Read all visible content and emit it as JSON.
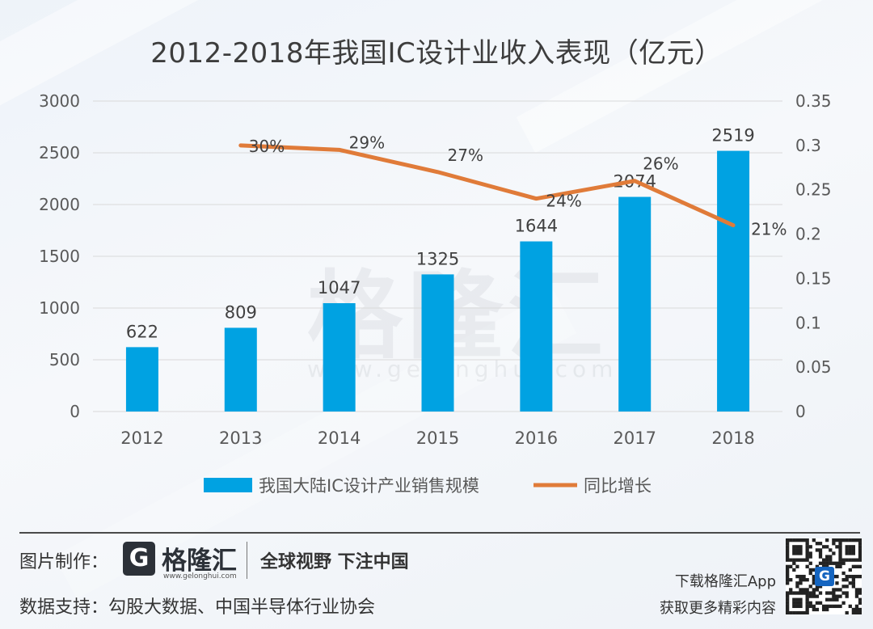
{
  "chart_data": {
    "type": "bar+line",
    "title": "2012-2018年我国IC设计业收入表现（亿元）",
    "categories": [
      "2012",
      "2013",
      "2014",
      "2015",
      "2016",
      "2017",
      "2018"
    ],
    "series": [
      {
        "name": "我国大陆IC设计产业销售规模",
        "type": "bar",
        "axis": "left",
        "color": "#00a2e2",
        "values": [
          622,
          809,
          1047,
          1325,
          1644,
          2074,
          2519
        ],
        "labels": [
          "622",
          "809",
          "1047",
          "1325",
          "1644",
          "2074",
          "2519"
        ]
      },
      {
        "name": "同比增长",
        "type": "line",
        "axis": "right",
        "color": "#e07b39",
        "values": [
          null,
          0.3,
          0.295,
          0.27,
          0.24,
          0.26,
          0.21
        ],
        "labels": [
          "",
          "30%",
          "29%",
          "27%",
          "24%",
          "26%",
          "21%"
        ]
      }
    ],
    "y_left": {
      "min": 0,
      "max": 3000,
      "ticks": [
        0,
        500,
        1000,
        1500,
        2000,
        2500,
        3000
      ]
    },
    "y_right": {
      "min": 0,
      "max": 0.35,
      "ticks": [
        "0",
        "0.05",
        "0.1",
        "0.15",
        "0.2",
        "0.25",
        "0.3",
        "0.35"
      ]
    },
    "grid": true,
    "legend_position": "bottom"
  },
  "watermark": {
    "cn": "格隆汇",
    "en": "www.gelonghui.com"
  },
  "footer": {
    "made_by_label": "图片制作：",
    "logo_letter": "G",
    "logo_name": "格隆汇",
    "logo_url": "www.gelonghui.com",
    "slogan": "全球视野 下注中国",
    "data_support_label": "数据支持：",
    "data_sources": "勾股大数据、中国半导体行业协会",
    "app_line1": "下载格隆汇App",
    "app_line2": "获取更多精彩内容"
  }
}
